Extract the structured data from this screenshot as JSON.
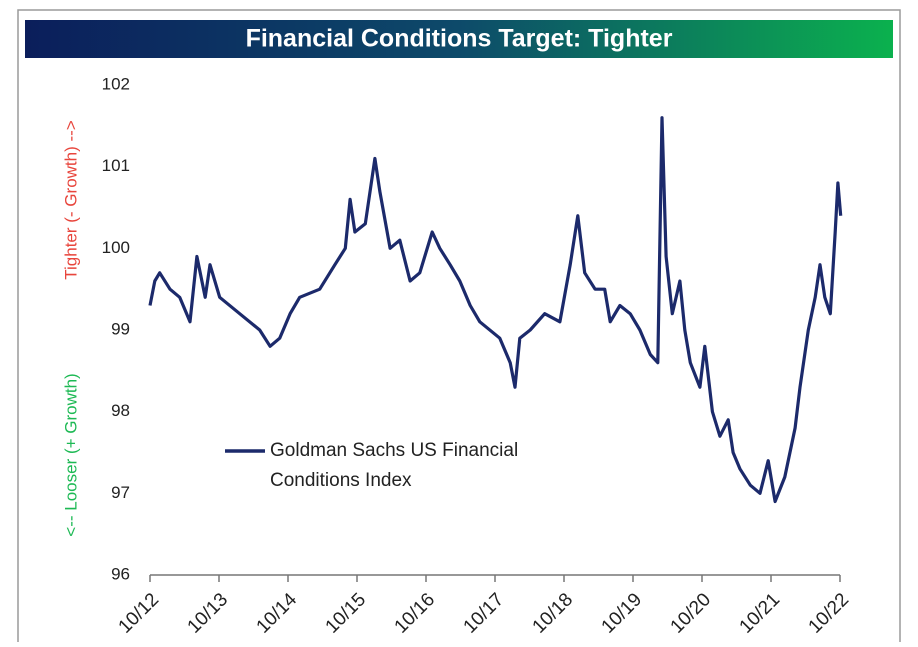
{
  "chart_data": {
    "type": "line",
    "title": "Financial Conditions Target: Tighter",
    "y_annotations": [
      {
        "text": "Tighter (- Growth) -->",
        "color": "#e8453c"
      },
      {
        "text": "<-- Looser  (+ Growth)",
        "color": "#1db954"
      }
    ],
    "xlim": [
      2012.75,
      2022.75
    ],
    "xticks": [
      {
        "value": 2012.75,
        "label": "10/12"
      },
      {
        "value": 2013.75,
        "label": "10/13"
      },
      {
        "value": 2014.75,
        "label": "10/14"
      },
      {
        "value": 2015.75,
        "label": "10/15"
      },
      {
        "value": 2016.75,
        "label": "10/16"
      },
      {
        "value": 2017.75,
        "label": "10/17"
      },
      {
        "value": 2018.75,
        "label": "10/18"
      },
      {
        "value": 2019.75,
        "label": "10/19"
      },
      {
        "value": 2020.75,
        "label": "10/20"
      },
      {
        "value": 2021.75,
        "label": "10/21"
      },
      {
        "value": 2022.75,
        "label": "10/22"
      }
    ],
    "ylim": [
      96,
      102
    ],
    "yticks": [
      96,
      97,
      98,
      99,
      100,
      101,
      102
    ],
    "x": [
      2012.75,
      2012.82,
      2012.89,
      2013.04,
      2013.18,
      2013.33,
      2013.43,
      2013.55,
      2013.62,
      2013.76,
      2014.05,
      2014.34,
      2014.49,
      2014.63,
      2014.78,
      2014.92,
      2015.21,
      2015.43,
      2015.58,
      2015.65,
      2015.72,
      2015.87,
      2016.01,
      2016.08,
      2016.23,
      2016.37,
      2016.52,
      2016.66,
      2016.84,
      2016.95,
      2017.1,
      2017.24,
      2017.39,
      2017.53,
      2017.82,
      2017.97,
      2018.04,
      2018.11,
      2018.26,
      2018.47,
      2018.69,
      2018.84,
      2018.95,
      2019.05,
      2019.2,
      2019.34,
      2019.42,
      2019.56,
      2019.71,
      2019.85,
      2020.0,
      2020.11,
      2020.17,
      2020.23,
      2020.32,
      2020.43,
      2020.5,
      2020.58,
      2020.72,
      2020.79,
      2020.9,
      2021.01,
      2021.13,
      2021.2,
      2021.3,
      2021.45,
      2021.59,
      2021.71,
      2021.81,
      2021.95,
      2022.1,
      2022.17,
      2022.29,
      2022.39,
      2022.46,
      2022.53,
      2022.61,
      2022.68,
      2022.72,
      2022.76
    ],
    "series": [
      {
        "name": "Goldman Sachs US Financial Conditions Index",
        "color": "#1c2a6b",
        "values": [
          99.3,
          99.6,
          99.7,
          99.5,
          99.4,
          99.1,
          99.9,
          99.4,
          99.8,
          99.4,
          99.2,
          99.0,
          98.8,
          98.9,
          99.2,
          99.4,
          99.5,
          99.8,
          100.0,
          100.6,
          100.2,
          100.3,
          101.1,
          100.7,
          100.0,
          100.1,
          99.6,
          99.7,
          100.2,
          100.0,
          99.8,
          99.6,
          99.3,
          99.1,
          98.9,
          98.6,
          98.3,
          98.9,
          99.0,
          99.2,
          99.1,
          99.8,
          100.4,
          99.7,
          99.5,
          99.5,
          99.1,
          99.3,
          99.2,
          99.0,
          98.7,
          98.6,
          101.6,
          99.9,
          99.2,
          99.6,
          99.0,
          98.6,
          98.3,
          98.8,
          98.0,
          97.7,
          97.9,
          97.5,
          97.3,
          97.1,
          97.0,
          97.4,
          96.9,
          97.2,
          97.8,
          98.3,
          99.0,
          99.4,
          99.8,
          99.4,
          99.2,
          100.2,
          100.8,
          100.4
        ]
      }
    ]
  }
}
